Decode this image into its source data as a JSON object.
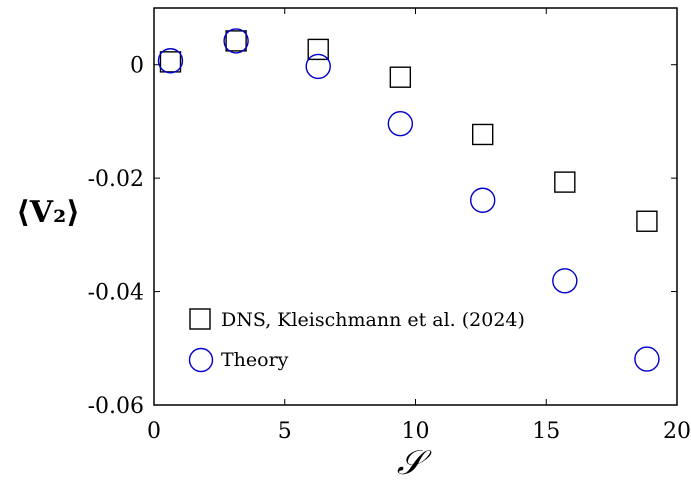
{
  "chart_data": {
    "type": "scatter",
    "xlabel": "𝒮",
    "ylabel": "⟨V₂⟩",
    "xlim": [
      0,
      20
    ],
    "ylim": [
      -0.06,
      0.01
    ],
    "x_ticks": [
      0,
      5,
      10,
      15,
      20
    ],
    "x_tick_labels": [
      "0",
      "5",
      "10",
      "15",
      "20"
    ],
    "y_ticks": [
      -0.06,
      -0.04,
      -0.02,
      0
    ],
    "y_tick_labels": [
      "-0.06",
      "-0.04",
      "-0.02",
      "0"
    ],
    "grid": false,
    "legend_position": "bottom-left",
    "series": [
      {
        "name": "DNS, Kleischmann et al. (2024)",
        "marker": "square",
        "color": "#000000",
        "x": [
          0.63,
          3.14,
          6.28,
          9.42,
          12.57,
          15.71,
          18.85
        ],
        "y": [
          0.0005,
          0.0042,
          0.0027,
          -0.0022,
          -0.0123,
          -0.0207,
          -0.0276
        ]
      },
      {
        "name": "Theory",
        "marker": "circle",
        "color": "#0000cc",
        "x": [
          0.63,
          3.14,
          6.28,
          9.42,
          12.57,
          15.71,
          18.85
        ],
        "y": [
          0.0007,
          0.0042,
          -0.0003,
          -0.0104,
          -0.0239,
          -0.0381,
          -0.0519
        ]
      }
    ]
  }
}
